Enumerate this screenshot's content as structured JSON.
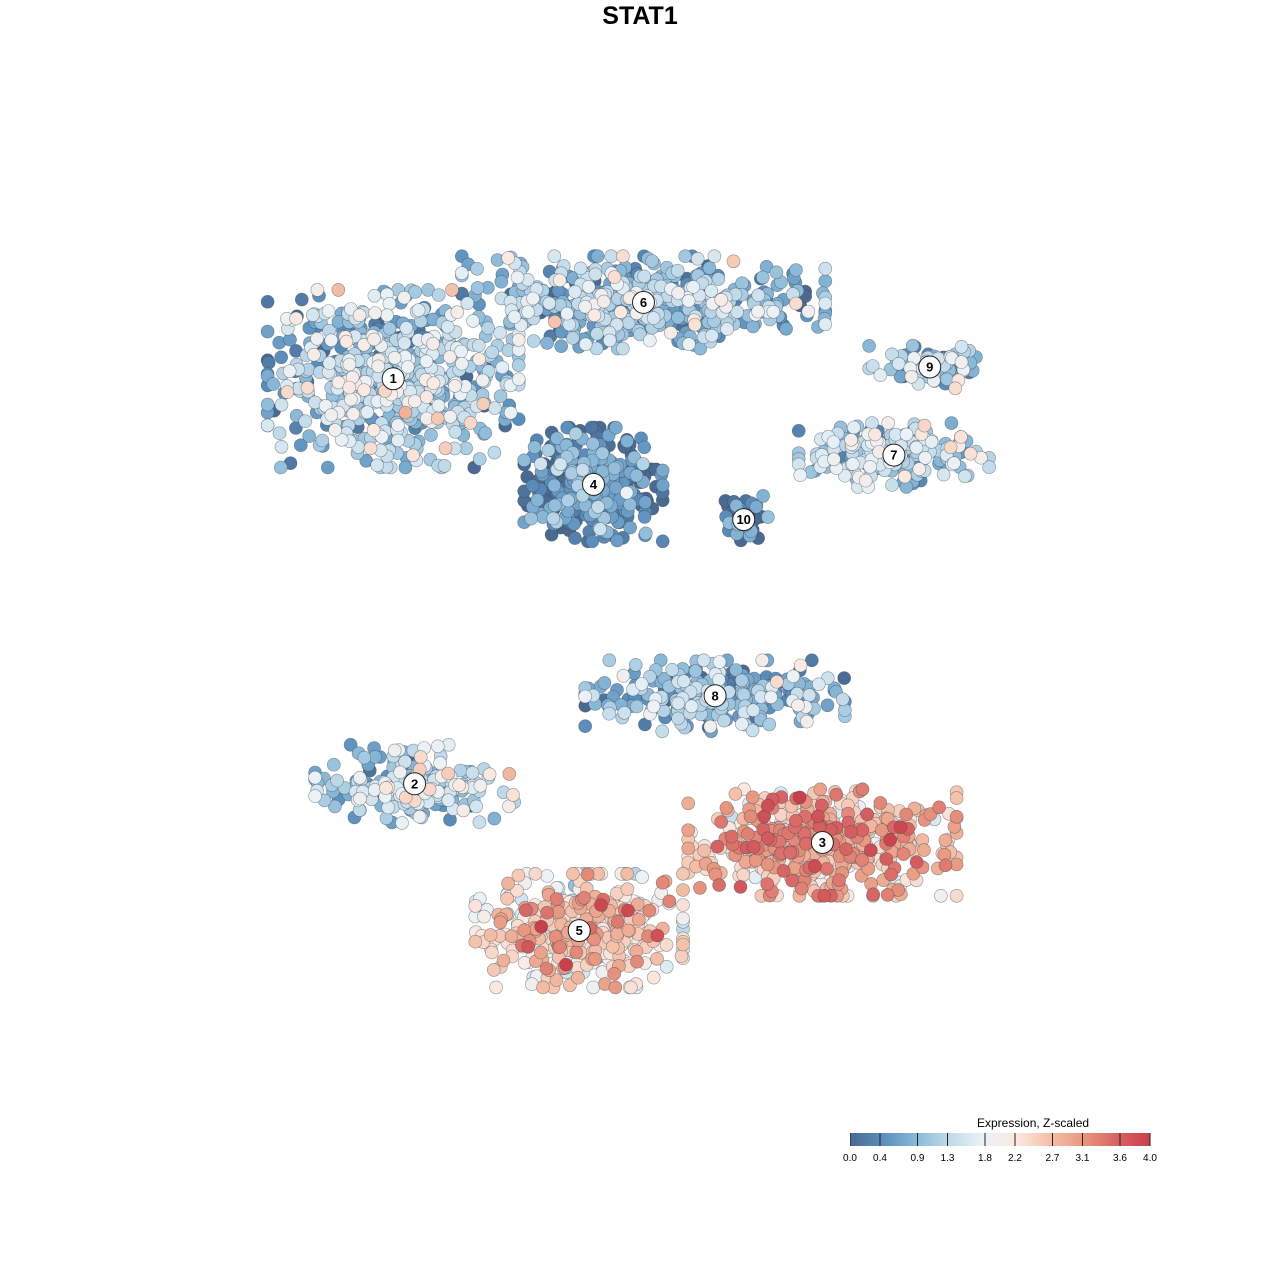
{
  "chart_data": {
    "type": "scatter",
    "title": "STAT1",
    "xlabel": "",
    "ylabel": "",
    "axes_visible": false,
    "legend": {
      "title": "Expression, Z-scaled",
      "placement": "bottom-right",
      "range": [
        0.0,
        4.0
      ],
      "ticks": [
        "0.0",
        "0.4",
        "0.9",
        "1.3",
        "1.8",
        "2.2",
        "2.7",
        "3.1",
        "3.6",
        "4.0"
      ],
      "colors": [
        "#4a6a92",
        "#5b8fbe",
        "#8ab9d8",
        "#c1dbea",
        "#eaf2f7",
        "#fbe9e1",
        "#f4c0a9",
        "#e8977f",
        "#d76363",
        "#c9404b"
      ]
    },
    "clusters": [
      {
        "id": "1",
        "label": "1",
        "center": [
          -3.8,
          3.2
        ],
        "spread": [
          1.45,
          1.25
        ],
        "mean_expr": 1.1,
        "n": 620
      },
      {
        "id": "2",
        "label": "2",
        "center": [
          -3.5,
          -3.7
        ],
        "spread": [
          1.15,
          0.55
        ],
        "mean_expr": 1.2,
        "n": 200
      },
      {
        "id": "3",
        "label": "3",
        "center": [
          2.2,
          -4.7
        ],
        "spread": [
          1.55,
          0.75
        ],
        "mean_expr": 2.7,
        "n": 520
      },
      {
        "id": "4",
        "label": "4",
        "center": [
          -1.0,
          1.4
        ],
        "spread": [
          0.8,
          0.8
        ],
        "mean_expr": 0.25,
        "n": 380
      },
      {
        "id": "5",
        "label": "5",
        "center": [
          -1.2,
          -6.2
        ],
        "spread": [
          1.2,
          0.8
        ],
        "mean_expr": 2.3,
        "n": 430
      },
      {
        "id": "6",
        "label": "6",
        "center": [
          -0.3,
          4.5
        ],
        "spread": [
          2.1,
          0.65
        ],
        "mean_expr": 1.0,
        "n": 520
      },
      {
        "id": "7",
        "label": "7",
        "center": [
          3.2,
          1.9
        ],
        "spread": [
          1.1,
          0.45
        ],
        "mean_expr": 1.2,
        "n": 210
      },
      {
        "id": "8",
        "label": "8",
        "center": [
          0.7,
          -2.2
        ],
        "spread": [
          1.5,
          0.5
        ],
        "mean_expr": 0.9,
        "n": 270
      },
      {
        "id": "9",
        "label": "9",
        "center": [
          3.7,
          3.4
        ],
        "spread": [
          0.7,
          0.3
        ],
        "mean_expr": 1.0,
        "n": 80
      },
      {
        "id": "10",
        "label": "10",
        "center": [
          1.1,
          0.8
        ],
        "spread": [
          0.28,
          0.35
        ],
        "mean_expr": 0.2,
        "n": 40
      }
    ],
    "xlim": [
      -6.5,
      6.5
    ],
    "ylim": [
      -9.0,
      6.5
    ]
  }
}
